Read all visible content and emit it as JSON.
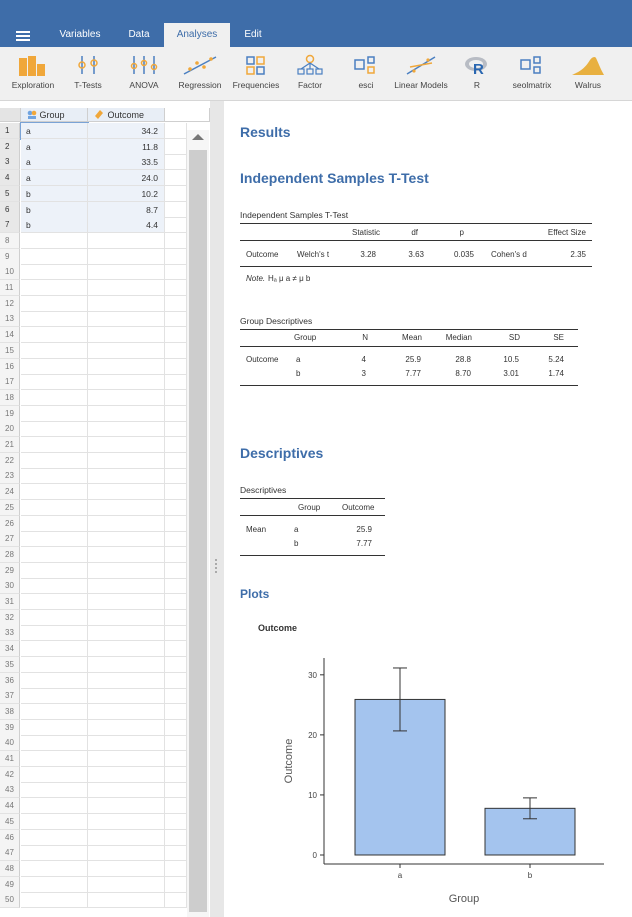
{
  "menu": {
    "tabs": [
      "Variables",
      "Data",
      "Analyses",
      "Edit"
    ],
    "active_tab": "Analyses"
  },
  "ribbon": {
    "buttons": [
      "Exploration",
      "T-Tests",
      "ANOVA",
      "Regression",
      "Frequencies",
      "Factor",
      "esci",
      "Linear Models",
      "R",
      "seolmatrix",
      "Walrus"
    ]
  },
  "sheet": {
    "columns": [
      "Group",
      "Outcome"
    ],
    "rows": [
      {
        "group": "a",
        "outcome": "34.2"
      },
      {
        "group": "a",
        "outcome": "11.8"
      },
      {
        "group": "a",
        "outcome": "33.5"
      },
      {
        "group": "a",
        "outcome": "24.0"
      },
      {
        "group": "b",
        "outcome": "10.2"
      },
      {
        "group": "b",
        "outcome": "8.7"
      },
      {
        "group": "b",
        "outcome": "4.4"
      }
    ],
    "row_numbers": [
      "1",
      "2",
      "3",
      "4",
      "5",
      "6",
      "7",
      "8",
      "9",
      "10",
      "11",
      "12",
      "13",
      "14",
      "15",
      "16",
      "17",
      "18",
      "19",
      "20",
      "21",
      "22",
      "23",
      "24",
      "25",
      "26",
      "27",
      "28",
      "29",
      "30",
      "31",
      "32",
      "33",
      "34",
      "35",
      "36",
      "37",
      "38",
      "39",
      "40",
      "41",
      "42",
      "43",
      "44",
      "45",
      "46",
      "47",
      "48",
      "49",
      "50"
    ]
  },
  "results": {
    "heading": "Results",
    "ttest": {
      "heading": "Independent Samples T-Test",
      "table_title": "Independent Samples T-Test",
      "headers": {
        "statistic": "Statistic",
        "df": "df",
        "p": "p",
        "effect_size": "Effect Size"
      },
      "row": {
        "variable": "Outcome",
        "test": "Welch's t",
        "statistic": "3.28",
        "df": "3.63",
        "p": "0.035",
        "effect": "Cohen's d",
        "effect_value": "2.35"
      },
      "note_label": "Note.",
      "note_text": "Hₐ μ a ≠ μ b"
    },
    "group_desc": {
      "table_title": "Group Descriptives",
      "headers": [
        "Group",
        "N",
        "Mean",
        "Median",
        "SD",
        "SE"
      ],
      "variable": "Outcome",
      "rows": [
        {
          "group": "a",
          "n": "4",
          "mean": "25.9",
          "median": "28.8",
          "sd": "10.5",
          "se": "5.24"
        },
        {
          "group": "b",
          "n": "3",
          "mean": "7.77",
          "median": "8.70",
          "sd": "3.01",
          "se": "1.74"
        }
      ]
    },
    "descriptives": {
      "heading": "Descriptives",
      "table_title": "Descriptives",
      "headers": [
        "Group",
        "Outcome"
      ],
      "stat": "Mean",
      "rows": [
        {
          "group": "a",
          "value": "25.9"
        },
        {
          "group": "b",
          "value": "7.77"
        }
      ]
    },
    "plots": {
      "heading": "Plots",
      "plot_title": "Outcome"
    }
  },
  "chart_data": {
    "type": "bar",
    "title": "Outcome",
    "xlabel": "Group",
    "ylabel": "Outcome",
    "categories": [
      "a",
      "b"
    ],
    "values": [
      25.9,
      7.77
    ],
    "error_low": [
      20.66,
      6.03
    ],
    "error_high": [
      31.14,
      9.51
    ],
    "ylim": [
      0,
      30
    ],
    "yticks": [
      0,
      10,
      20,
      30
    ],
    "bar_color": "#a4c4ee",
    "grid": false
  },
  "colors": {
    "brand": "#3e6da9",
    "ribbon_bg": "#f0f0f0",
    "heading": "#3e6da9"
  }
}
